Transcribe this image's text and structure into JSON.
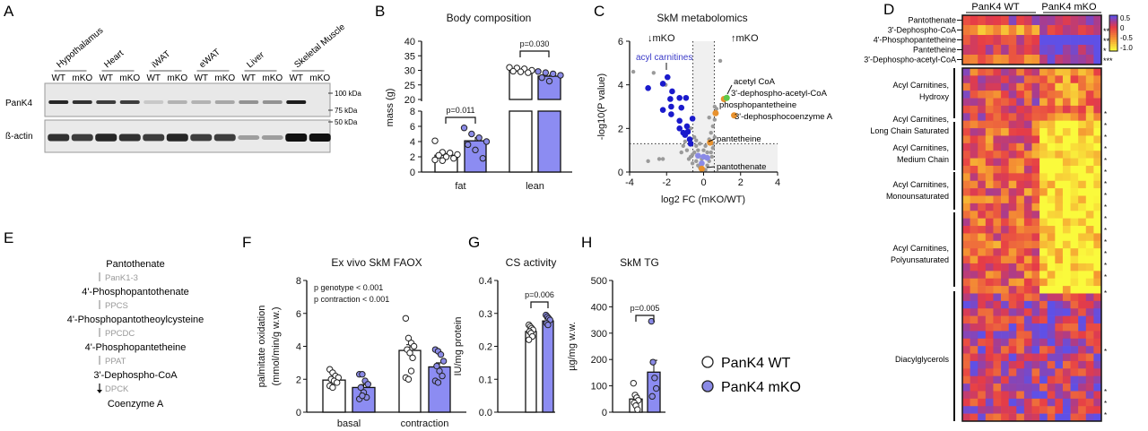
{
  "panels": {
    "a": "A",
    "b": "B",
    "c": "C",
    "d": "D",
    "e": "E",
    "f": "F",
    "g": "G",
    "h": "H"
  },
  "colors": {
    "wt_fill": "#ffffff",
    "mko_fill": "#8c8cf2",
    "mko_point": "#8a8ae6",
    "acyl_blue": "#1a1acc",
    "orange": "#e8922e",
    "green": "#5ec94a",
    "grey_point": "#9a9a9a"
  },
  "blot": {
    "tissues": [
      "Hypothalamus",
      "Heart",
      "iWAT",
      "eWAT",
      "Liver",
      "Skeletal Muscle"
    ],
    "lanes": [
      "WT",
      "mKO",
      "WT",
      "mKO",
      "WT",
      "mKO",
      "WT",
      "mKO",
      "WT",
      "mKO",
      "WT",
      "mKO"
    ],
    "rows": [
      "PanK4",
      "ß-actin"
    ],
    "markers": [
      "100 kDa",
      "75 kDa",
      "50 kDa"
    ],
    "pank4_intensity": [
      0.9,
      0.85,
      0.8,
      0.8,
      0.15,
      0.25,
      0.25,
      0.3,
      0.4,
      0.4,
      0.95,
      0
    ],
    "actin_intensity": [
      0.85,
      0.8,
      0.9,
      0.85,
      0.8,
      0.9,
      0.8,
      0.8,
      0.35,
      0.35,
      1,
      1
    ]
  },
  "pathway": {
    "steps": [
      "Pantothenate",
      "4'-Phosphopantothenate",
      "4'-Phosphopantotheoylcysteine",
      "4'-Phosphopantetheine",
      "3'-Dephospho-CoA",
      "Coenzyme A"
    ],
    "enzymes": [
      "PanK1-3",
      "PPCS",
      "PPCDC",
      "PPAT",
      "DPCK"
    ]
  },
  "legend": {
    "wt": "PanK4 WT",
    "mko": "PanK4 mKO"
  },
  "chart_data": [
    {
      "id": "B",
      "type": "bar",
      "title": "Body composition",
      "ylabel": "mass (g)",
      "categories": [
        "fat",
        "lean"
      ],
      "y_break": [
        8,
        20
      ],
      "ylim": [
        0,
        40
      ],
      "yticks_lower": [
        "0",
        "2",
        "4",
        "6",
        "8"
      ],
      "yticks_upper": [
        "20",
        "25",
        "30",
        "35",
        "40"
      ],
      "series": [
        {
          "group": "WT",
          "values": [
            2.2,
            29.8
          ],
          "sem": [
            0.3,
            0.3
          ],
          "points": [
            [
              4.1,
              2.6,
              2.5,
              2.3,
              2.2,
              2.0,
              1.8,
              1.6,
              1.5
            ],
            [
              31.0,
              30.8,
              30.5,
              30.0,
              29.7,
              29.5,
              29.2
            ]
          ]
        },
        {
          "group": "mKO",
          "values": [
            4.1,
            28.0
          ],
          "sem": [
            0.5,
            0.5
          ],
          "points": [
            [
              5.8,
              5.0,
              4.5,
              4.0,
              3.6,
              2.9,
              1.8
            ],
            [
              29.6,
              29.2,
              28.8,
              28.3,
              27.5,
              26.3
            ]
          ]
        }
      ],
      "annotations": [
        "p=0.011",
        "p=0.030"
      ]
    },
    {
      "id": "C",
      "type": "scatter",
      "title": "SkM metabolomics",
      "xlabel": "log2 FC (mKO/WT)",
      "ylabel": "-log10(P value)",
      "xlim": [
        -4,
        4
      ],
      "ylim": [
        0,
        6
      ],
      "xticks": [
        "-4",
        "-2",
        "0",
        "2",
        "4"
      ],
      "yticks": [
        "0",
        "2",
        "4",
        "6"
      ],
      "thresholds": {
        "x": [
          -0.58,
          0.58
        ],
        "y": 1.3
      },
      "direction_labels": [
        "↓mKO",
        "↑mKO"
      ],
      "annotations": [
        "acyl carnitines",
        "acetyl CoA",
        "3'-dephospho-acetyl-CoA",
        "phosphopantetheine",
        "3'-dephosphocoenzyme A",
        "pantetheine",
        "pantothenate"
      ],
      "blue": [
        [
          -3.0,
          3.85
        ],
        [
          -2.2,
          4.05
        ],
        [
          -1.95,
          4.35
        ],
        [
          -1.7,
          3.7
        ],
        [
          -1.8,
          3.35
        ],
        [
          -2.2,
          2.85
        ],
        [
          -1.75,
          3.0
        ],
        [
          -1.75,
          2.65
        ],
        [
          -1.3,
          3.4
        ],
        [
          -1.2,
          2.95
        ],
        [
          -1.3,
          2.35
        ],
        [
          -0.95,
          3.4
        ],
        [
          -1.3,
          2.0
        ],
        [
          -1.1,
          1.8
        ],
        [
          -1.0,
          1.7
        ],
        [
          -0.9,
          2.1
        ],
        [
          -0.85,
          1.85
        ],
        [
          -0.75,
          1.5
        ],
        [
          -0.7,
          1.3
        ],
        [
          -0.6,
          2.45
        ],
        [
          -0.3,
          0.75
        ],
        [
          0.0,
          0.7
        ],
        [
          -0.1,
          0.4
        ],
        [
          0.2,
          0.65
        ]
      ],
      "orange": [
        [
          1.1,
          3.35
        ],
        [
          0.65,
          2.7
        ],
        [
          1.65,
          2.6
        ],
        [
          0.35,
          1.35
        ],
        [
          -0.1,
          0.15
        ]
      ],
      "green": [
        [
          1.25,
          3.4
        ]
      ],
      "grey": [
        [
          -3.8,
          4.6
        ],
        [
          -2.7,
          4.55
        ],
        [
          -2.2,
          4.1
        ],
        [
          -2.05,
          4.0
        ],
        [
          0.9,
          5.1
        ],
        [
          -3.0,
          0.5
        ],
        [
          -2.4,
          0.6
        ],
        [
          -2.2,
          0.6
        ],
        [
          0.5,
          2.1
        ],
        [
          0.6,
          2.4
        ],
        [
          0.7,
          2.9
        ],
        [
          0.6,
          3.0
        ],
        [
          0.4,
          1.8
        ],
        [
          0.3,
          1.5
        ],
        [
          -0.5,
          1.6
        ],
        [
          -0.4,
          1.2
        ],
        [
          -0.3,
          1.0
        ],
        [
          -0.5,
          0.9
        ],
        [
          -0.6,
          0.8
        ],
        [
          -0.7,
          0.7
        ],
        [
          -0.8,
          0.6
        ],
        [
          -0.4,
          0.5
        ],
        [
          -0.3,
          0.3
        ],
        [
          -0.2,
          0.2
        ],
        [
          0.1,
          0.1
        ],
        [
          0.2,
          0.3
        ],
        [
          0.3,
          0.5
        ],
        [
          0.4,
          0.9
        ],
        [
          0.5,
          1.1
        ],
        [
          0.6,
          1.6
        ],
        [
          0.5,
          1.3
        ],
        [
          -0.9,
          1.0
        ],
        [
          -1.1,
          1.2
        ],
        [
          -1.2,
          0.9
        ],
        [
          -1.0,
          1.4
        ],
        [
          0.2,
          0.9
        ],
        [
          0.1,
          1.2
        ],
        [
          0.0,
          1.0
        ],
        [
          -0.1,
          0.6
        ],
        [
          -0.6,
          0.4
        ],
        [
          -0.4,
          1.45
        ],
        [
          0.45,
          0.7
        ],
        [
          -0.2,
          1.3
        ],
        [
          0.3,
          2.5
        ],
        [
          -0.7,
          2.0
        ]
      ]
    },
    {
      "id": "D",
      "type": "heatmap",
      "column_groups": [
        "PanK4 WT",
        "PanK4 mKO"
      ],
      "colorbar_ticks": [
        "0.5",
        "0",
        "-0.5",
        "-1.0"
      ],
      "top_rows": [
        "Pantothenate",
        "3'-Dephospho-CoA",
        "4'-Phosphopantetheine",
        "Pantetheine",
        "3'-Dephospho-acetyl-CoA"
      ],
      "top_significance": [
        "",
        "**",
        "**",
        "*",
        "***"
      ],
      "row_groups": [
        "Acyl  Carnitines, Hydroxy",
        "Acyl Carnitines, Long Chain Saturated",
        "Acyl Carnitines, Medium Chain",
        "Acyl Carnitines, Monounsaturated",
        "Acyl Carnitines, Polyunsaturated",
        "Diacylglycerols"
      ]
    },
    {
      "id": "F",
      "type": "bar",
      "title": "Ex vivo SkM FAOX",
      "ylabel": "palmitate oxidation (mmol/min/g w.w.)",
      "categories": [
        "basal",
        "contraction"
      ],
      "ylim": [
        0,
        8
      ],
      "yticks": [
        "0",
        "2",
        "4",
        "6",
        "8"
      ],
      "series": [
        {
          "group": "WT",
          "values": [
            1.95,
            3.75
          ],
          "sem": [
            0.12,
            0.35
          ],
          "points": [
            [
              2.6,
              2.4,
              2.2,
              2.1,
              2.0,
              1.9,
              1.8,
              1.6,
              1.5
            ],
            [
              5.7,
              4.5,
              4.2,
              4.0,
              3.8,
              3.6,
              3.3,
              2.1,
              2.0,
              2.5
            ]
          ]
        },
        {
          "group": "mKO",
          "values": [
            1.5,
            2.75
          ],
          "sem": [
            0.18,
            0.25
          ],
          "points": [
            [
              2.3,
              2.3,
              1.9,
              1.7,
              1.5,
              1.2,
              0.9,
              0.8,
              1.0
            ],
            [
              3.8,
              3.7,
              3.5,
              3.1,
              2.8,
              2.5,
              2.2,
              1.9,
              1.8
            ]
          ]
        }
      ],
      "annotations": [
        "p genotype < 0.001",
        "p contraction < 0.001"
      ]
    },
    {
      "id": "G",
      "type": "bar",
      "title": "CS activity",
      "ylabel": "IU/mg protein",
      "ylim": [
        0,
        0.4
      ],
      "yticks": [
        "0.0",
        "0.1",
        "0.2",
        "0.3",
        "0.4"
      ],
      "series": [
        {
          "group": "WT",
          "values": [
            0.245
          ],
          "sem": [
            0.006
          ],
          "points": [
            [
              0.265,
              0.26,
              0.255,
              0.25,
              0.245,
              0.24,
              0.23,
              0.22
            ]
          ]
        },
        {
          "group": "mKO",
          "values": [
            0.277
          ],
          "sem": [
            0.006
          ],
          "points": [
            [
              0.295,
              0.29,
              0.285,
              0.28,
              0.27,
              0.265
            ]
          ]
        }
      ],
      "annotations": [
        "p=0.006"
      ]
    },
    {
      "id": "H",
      "type": "bar",
      "title": "SkM TG",
      "ylabel": "µg/mg w.w.",
      "ylim": [
        0,
        500
      ],
      "yticks": [
        "0",
        "100",
        "200",
        "300",
        "400",
        "500"
      ],
      "series": [
        {
          "group": "WT",
          "values": [
            50
          ],
          "sem": [
            12
          ],
          "points": [
            [
              110,
              65,
              55,
              45,
              35,
              25,
              10
            ]
          ]
        },
        {
          "group": "mKO",
          "values": [
            152
          ],
          "sem": [
            45
          ],
          "points": [
            [
              345,
              190,
              130,
              90,
              60
            ]
          ]
        }
      ],
      "annotations": [
        "p=0.005"
      ]
    }
  ]
}
